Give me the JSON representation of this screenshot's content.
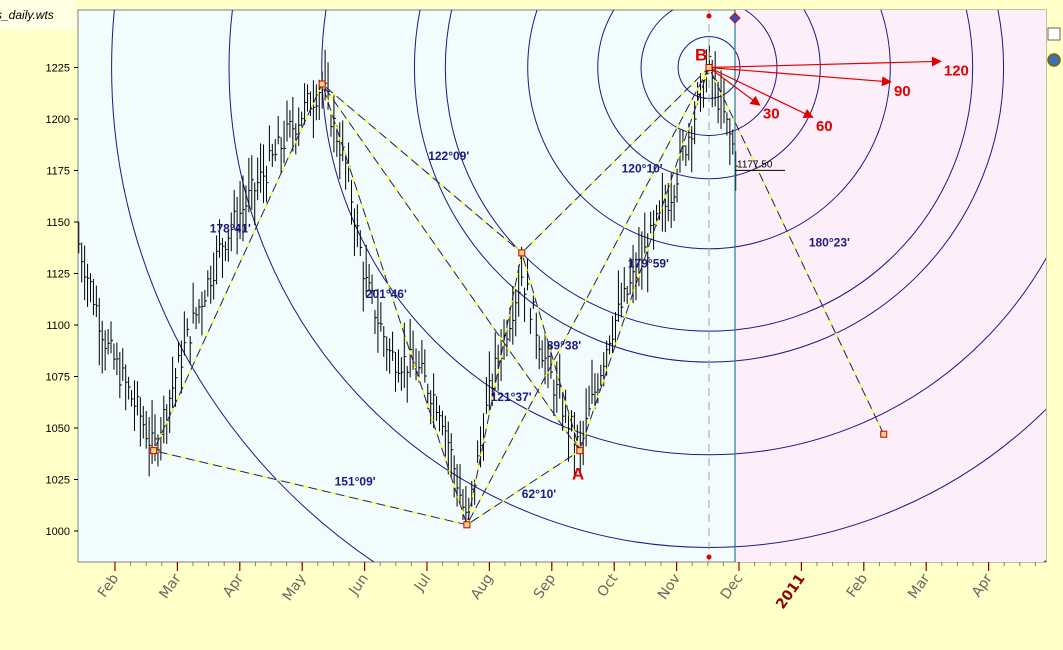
{
  "window": {
    "file_label": "s_daily.wts"
  },
  "chart_data": {
    "type": "bar",
    "title": "",
    "xlabel": "",
    "ylabel": "",
    "ylim": [
      990,
      1240
    ],
    "y_ticks": [
      1000,
      1025,
      1050,
      1075,
      1100,
      1125,
      1150,
      1175,
      1200,
      1225
    ],
    "x_ticks": [
      "Feb",
      "Mar",
      "Apr",
      "May",
      "Jun",
      "Jul",
      "Aug",
      "Sep",
      "Oct",
      "Nov",
      "Dec",
      "2011",
      "Feb",
      "Mar",
      "Apr"
    ],
    "year_tick": "2011",
    "last_price": "1177.50",
    "pivots": [
      {
        "name": "p1",
        "month": 1.1,
        "price": 1039
      },
      {
        "name": "p2",
        "month": 3.8,
        "price": 1217
      },
      {
        "name": "p3",
        "month": 6.12,
        "price": 1003
      },
      {
        "name": "A",
        "month": 7.93,
        "price": 1039
      },
      {
        "name": "p4",
        "month": 7.0,
        "price": 1135
      },
      {
        "name": "B",
        "month": 10.0,
        "price": 1225
      },
      {
        "name": "target",
        "month": 12.8,
        "price": 1047
      }
    ],
    "point_labels": [
      "A",
      "B"
    ],
    "angle_labels": [
      {
        "text": "178°41'",
        "month": 2.0,
        "price": 1145
      },
      {
        "text": "151°09'",
        "month": 4.0,
        "price": 1022
      },
      {
        "text": "122°09'",
        "month": 5.5,
        "price": 1180
      },
      {
        "text": "201°46'",
        "month": 4.5,
        "price": 1113
      },
      {
        "text": "120°10'",
        "month": 8.6,
        "price": 1174
      },
      {
        "text": "179°59'",
        "month": 8.7,
        "price": 1128
      },
      {
        "text": "89°38'",
        "month": 7.4,
        "price": 1088
      },
      {
        "text": "121°37'",
        "month": 6.5,
        "price": 1063
      },
      {
        "text": "62°10'",
        "month": 7.0,
        "price": 1016
      },
      {
        "text": "180°23'",
        "month": 11.6,
        "price": 1138
      }
    ],
    "arrows": [
      {
        "label": "30",
        "month": 10.8,
        "price": 1207
      },
      {
        "label": "60",
        "month": 11.65,
        "price": 1201
      },
      {
        "label": "90",
        "month": 12.9,
        "price": 1218
      },
      {
        "label": "120",
        "month": 13.7,
        "price": 1228
      }
    ],
    "circle_radii_price": [
      15,
      33,
      54,
      88,
      128,
      143,
      188,
      233,
      290
    ],
    "grid": false,
    "legend": "none",
    "colors": {
      "plot_bg": "#f2fcfc",
      "future_bg": "#fdeffa",
      "frame_bg": "#ffffc8",
      "bars": "#000000",
      "pattern_line": "#ffff33",
      "circles": "#1a1a80",
      "arrows": "#e00000",
      "cursor_line": "#2a7d8c"
    }
  }
}
